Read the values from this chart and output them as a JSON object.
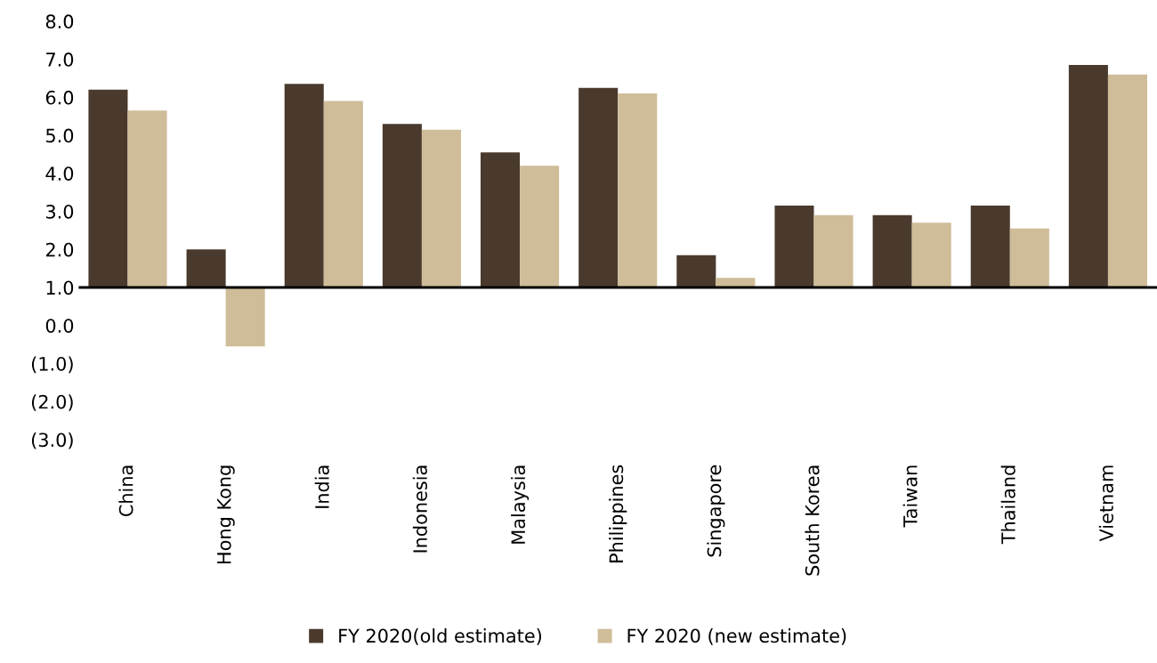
{
  "chart_data": {
    "type": "bar",
    "categories": [
      "China",
      "Hong Kong",
      "India",
      "Indonesia",
      "Malaysia",
      "Philippines",
      "Singapore",
      "South Korea",
      "Taiwan",
      "Thailand",
      "Vietnam"
    ],
    "series": [
      {
        "name": "FY 2020(old estimate)",
        "color": "#4a3a2d",
        "base": [
          1.0,
          1.0,
          1.0,
          1.0,
          1.0,
          1.0,
          1.0,
          1.0,
          1.0,
          1.0,
          1.0
        ],
        "values": [
          5.2,
          1.0,
          5.35,
          4.3,
          3.55,
          5.25,
          0.85,
          2.15,
          1.9,
          2.15,
          5.85
        ]
      },
      {
        "name": "FY 2020 (new estimate)",
        "color": "#cfbc98",
        "base": [
          1.0,
          1.0,
          1.0,
          1.0,
          1.0,
          1.0,
          1.0,
          1.0,
          1.0,
          1.0,
          1.0
        ],
        "values": [
          4.65,
          -1.55,
          4.9,
          4.15,
          3.2,
          5.1,
          0.25,
          1.9,
          1.7,
          1.55,
          5.6
        ]
      }
    ],
    "ylim": [
      -3,
      8
    ],
    "yticks": [
      {
        "value": -3,
        "label": "(3.0)"
      },
      {
        "value": -2,
        "label": "(2.0)"
      },
      {
        "value": -1,
        "label": "(1.0)"
      },
      {
        "value": 0,
        "label": "0.0"
      },
      {
        "value": 1,
        "label": "1.0"
      },
      {
        "value": 2,
        "label": "2.0"
      },
      {
        "value": 3,
        "label": "3.0"
      },
      {
        "value": 4,
        "label": "4.0"
      },
      {
        "value": 5,
        "label": "5.0"
      },
      {
        "value": 6,
        "label": "6.0"
      },
      {
        "value": 7,
        "label": "7.0"
      },
      {
        "value": 8,
        "label": "8.0"
      }
    ],
    "ref_lines": [
      {
        "axis": "y",
        "value": 1.0,
        "color": "#000000"
      }
    ],
    "grid": false,
    "legend": "bottom"
  }
}
